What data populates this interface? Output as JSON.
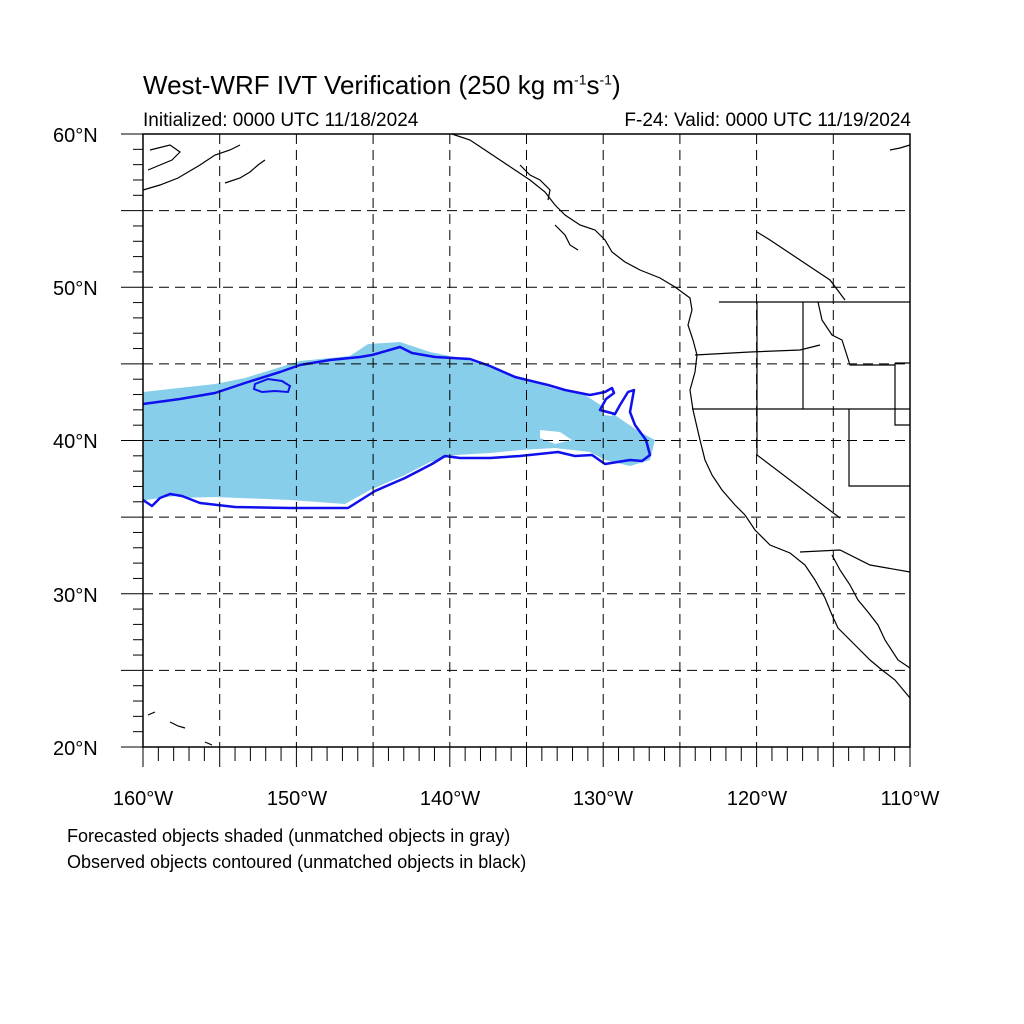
{
  "title": {
    "main": "West-WRF IVT Verification (250 kg m",
    "exp1": "-1",
    "mid": "s",
    "exp2": "-1",
    "end": ")"
  },
  "subtitle_left": "Initialized: 0000 UTC 11/18/2024",
  "subtitle_right": "F-24: Valid: 0000 UTC 11/19/2024",
  "lat_labels": [
    "60°N",
    "50°N",
    "40°N",
    "30°N",
    "20°N"
  ],
  "lon_labels": [
    "160°W",
    "150°W",
    "140°W",
    "130°W",
    "120°W",
    "110°W"
  ],
  "notes": [
    "Forecasted objects shaded (unmatched objects in gray)",
    "Observed objects contoured (unmatched objects in black)"
  ],
  "colors": {
    "forecast_fill": "#87ceeb",
    "observed_contour": "#1010ee",
    "coastline": "#000000",
    "grid": "#000000"
  },
  "map": {
    "lon_range": [
      -160,
      -110
    ],
    "lat_range": [
      20,
      60
    ],
    "grid_spacing_deg": 5,
    "grid_style": "dashed"
  }
}
